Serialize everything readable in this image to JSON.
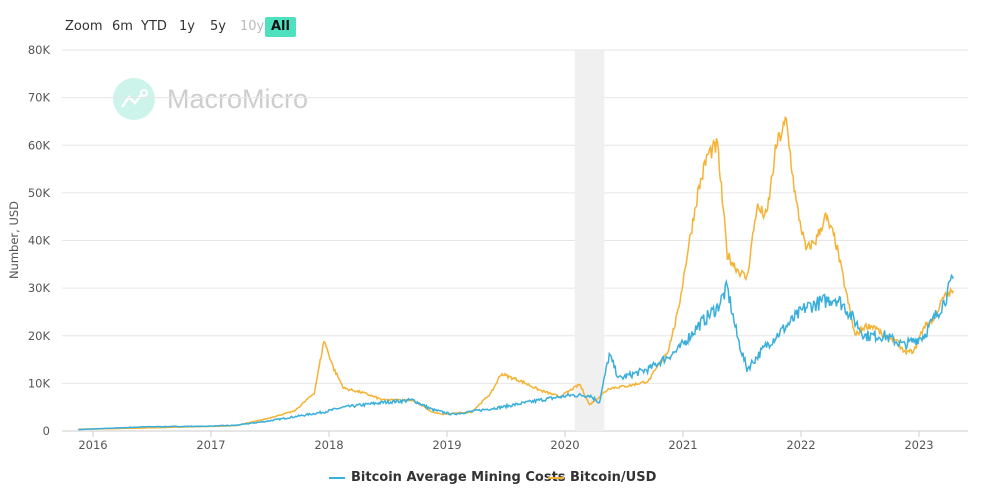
{
  "range_selector": {
    "label": "Zoom",
    "buttons": [
      {
        "label": "6m",
        "state": "normal"
      },
      {
        "label": "YTD",
        "state": "normal"
      },
      {
        "label": "1y",
        "state": "normal"
      },
      {
        "label": "5y",
        "state": "normal"
      },
      {
        "label": "10y",
        "state": "disabled"
      },
      {
        "label": "All",
        "state": "selected"
      }
    ]
  },
  "watermark": "MacroMicro",
  "chart_data": {
    "type": "line",
    "ylabel": "Number, USD",
    "ylim": [
      0,
      80000
    ],
    "yticks": [
      "0",
      "10K",
      "20K",
      "30K",
      "40K",
      "50K",
      "60K",
      "70K",
      "80K"
    ],
    "xticks": [
      "2016",
      "2017",
      "2018",
      "2019",
      "2020",
      "2021",
      "2022",
      "2023"
    ],
    "grid": true,
    "legend": "bottom",
    "shaded_range": [
      "2020-02",
      "2020-04"
    ],
    "series": [
      {
        "name": "Bitcoin Average Mining Costs",
        "color": "#3aafdc",
        "points": [
          [
            "2015-11",
            300
          ],
          [
            "2016-06",
            900
          ],
          [
            "2016-12",
            1000
          ],
          [
            "2017-03",
            1200
          ],
          [
            "2017-06",
            2000
          ],
          [
            "2017-09",
            3000
          ],
          [
            "2017-12",
            4000
          ],
          [
            "2018-02",
            5000
          ],
          [
            "2018-06",
            6000
          ],
          [
            "2018-09",
            6500
          ],
          [
            "2018-11",
            4500
          ],
          [
            "2019-01",
            3500
          ],
          [
            "2019-06",
            5000
          ],
          [
            "2019-10",
            6500
          ],
          [
            "2020-01",
            7500
          ],
          [
            "2020-03",
            7500
          ],
          [
            "2020-04",
            6000
          ],
          [
            "2020-05",
            16000
          ],
          [
            "2020-06",
            11000
          ],
          [
            "2020-09",
            13000
          ],
          [
            "2020-12",
            17000
          ],
          [
            "2021-02",
            22000
          ],
          [
            "2021-04",
            26000
          ],
          [
            "2021-05",
            30000
          ],
          [
            "2021-06",
            20000
          ],
          [
            "2021-07",
            13000
          ],
          [
            "2021-09",
            18000
          ],
          [
            "2021-11",
            22000
          ],
          [
            "2022-01",
            26000
          ],
          [
            "2022-04",
            28000
          ],
          [
            "2022-05",
            26000
          ],
          [
            "2022-07",
            20000
          ],
          [
            "2022-09",
            20000
          ],
          [
            "2022-11",
            18000
          ],
          [
            "2023-01",
            20000
          ],
          [
            "2023-03",
            27000
          ],
          [
            "2023-04",
            32000
          ]
        ]
      },
      {
        "name": "Bitcoin/USD",
        "color": "#f5b335",
        "points": [
          [
            "2015-11",
            400
          ],
          [
            "2016-01",
            430
          ],
          [
            "2016-06",
            650
          ],
          [
            "2016-12",
            950
          ],
          [
            "2017-03",
            1100
          ],
          [
            "2017-06",
            2500
          ],
          [
            "2017-09",
            4200
          ],
          [
            "2017-11",
            8000
          ],
          [
            "2017-12",
            19000
          ],
          [
            "2018-01",
            13000
          ],
          [
            "2018-02",
            9000
          ],
          [
            "2018-04",
            8000
          ],
          [
            "2018-06",
            6500
          ],
          [
            "2018-09",
            6500
          ],
          [
            "2018-11",
            4000
          ],
          [
            "2018-12",
            3500
          ],
          [
            "2019-03",
            4000
          ],
          [
            "2019-05",
            8000
          ],
          [
            "2019-06",
            12000
          ],
          [
            "2019-08",
            10500
          ],
          [
            "2019-10",
            8500
          ],
          [
            "2019-12",
            7200
          ],
          [
            "2020-02",
            9800
          ],
          [
            "2020-03",
            5500
          ],
          [
            "2020-05",
            9000
          ],
          [
            "2020-07",
            9500
          ],
          [
            "2020-09",
            10500
          ],
          [
            "2020-11",
            17000
          ],
          [
            "2020-12",
            25000
          ],
          [
            "2021-01",
            38000
          ],
          [
            "2021-02",
            50000
          ],
          [
            "2021-03",
            58000
          ],
          [
            "2021-04",
            60000
          ],
          [
            "2021-05",
            37000
          ],
          [
            "2021-06",
            34000
          ],
          [
            "2021-07",
            32000
          ],
          [
            "2021-08",
            47000
          ],
          [
            "2021-09",
            45000
          ],
          [
            "2021-10",
            60000
          ],
          [
            "2021-11",
            65000
          ],
          [
            "2021-12",
            48000
          ],
          [
            "2022-01",
            38000
          ],
          [
            "2022-02",
            40000
          ],
          [
            "2022-03",
            45000
          ],
          [
            "2022-04",
            40000
          ],
          [
            "2022-05",
            30000
          ],
          [
            "2022-06",
            20000
          ],
          [
            "2022-07",
            22000
          ],
          [
            "2022-08",
            22000
          ],
          [
            "2022-09",
            19500
          ],
          [
            "2022-10",
            19500
          ],
          [
            "2022-11",
            16500
          ],
          [
            "2022-12",
            16800
          ],
          [
            "2023-01",
            22000
          ],
          [
            "2023-02",
            23500
          ],
          [
            "2023-03",
            28000
          ],
          [
            "2023-04",
            29500
          ]
        ]
      }
    ]
  }
}
